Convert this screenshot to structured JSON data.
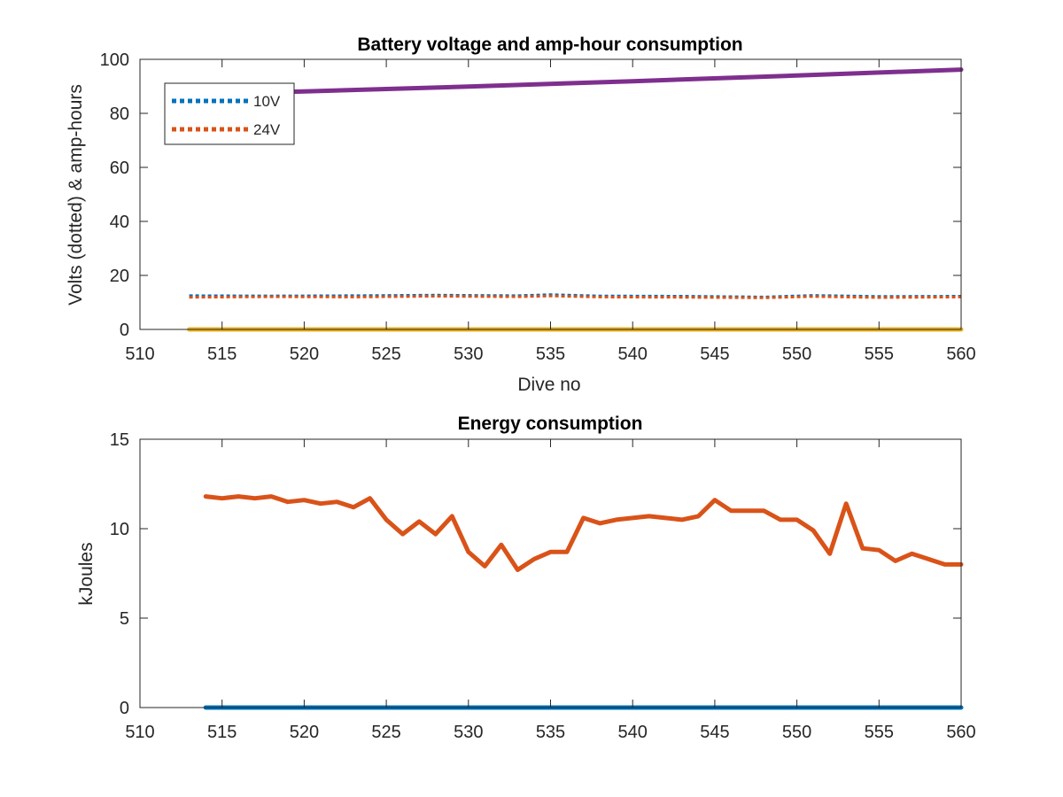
{
  "chart_data": [
    {
      "type": "line",
      "title": "Battery voltage and amp-hour consumption",
      "xlabel": "Dive no",
      "ylabel": "Volts (dotted) & amp-hours",
      "xlim": [
        510,
        560
      ],
      "ylim": [
        0,
        100
      ],
      "xticks": [
        510,
        515,
        520,
        525,
        530,
        535,
        540,
        545,
        550,
        555,
        560
      ],
      "yticks": [
        0,
        20,
        40,
        60,
        80,
        100
      ],
      "grid": false,
      "legend_position": "top-left",
      "series": [
        {
          "name": "10V",
          "style": "dotted",
          "color": "#0072BD",
          "x": [
            513,
            518,
            523,
            528,
            533,
            535,
            538,
            543,
            548,
            551,
            555,
            560
          ],
          "y": [
            12.5,
            12.4,
            12.5,
            12.7,
            12.5,
            12.9,
            12.4,
            12.3,
            12.0,
            12.6,
            12.2,
            12.3
          ]
        },
        {
          "name": "24V",
          "style": "dotted",
          "color": "#D95319",
          "x": [
            513,
            518,
            523,
            528,
            533,
            535,
            538,
            543,
            548,
            551,
            555,
            560
          ],
          "y": [
            11.9,
            12.1,
            12.0,
            12.3,
            12.1,
            12.4,
            12.0,
            11.9,
            11.7,
            12.2,
            11.8,
            12.0
          ]
        },
        {
          "style": "solid",
          "color": "#7E2F8E",
          "x": [
            513,
            520,
            530,
            540,
            550,
            560
          ],
          "y": [
            87.0,
            88.1,
            89.9,
            91.9,
            94.0,
            96.2
          ]
        },
        {
          "style": "solid",
          "color": "#EDB120",
          "x": [
            513,
            560
          ],
          "y": [
            0,
            0
          ]
        }
      ]
    },
    {
      "type": "line",
      "title": "Energy consumption",
      "xlabel": "",
      "ylabel": "kJoules",
      "xlim": [
        510,
        560
      ],
      "ylim": [
        0,
        15
      ],
      "xticks": [
        510,
        515,
        520,
        525,
        530,
        535,
        540,
        545,
        550,
        555,
        560
      ],
      "yticks": [
        0,
        5,
        10,
        15
      ],
      "grid": false,
      "series": [
        {
          "style": "solid",
          "color": "#D95319",
          "x": [
            514,
            515,
            516,
            517,
            518,
            519,
            520,
            521,
            522,
            523,
            524,
            525,
            526,
            527,
            528,
            529,
            530,
            531,
            532,
            533,
            534,
            535,
            536,
            537,
            538,
            539,
            540,
            541,
            542,
            543,
            544,
            545,
            546,
            547,
            548,
            549,
            550,
            551,
            552,
            553,
            554,
            555,
            556,
            557,
            558,
            559,
            560
          ],
          "y": [
            11.8,
            11.7,
            11.8,
            11.7,
            11.8,
            11.5,
            11.6,
            11.4,
            11.5,
            11.2,
            11.7,
            10.5,
            9.7,
            10.4,
            9.7,
            10.7,
            8.7,
            7.9,
            9.1,
            7.7,
            8.3,
            8.7,
            8.7,
            10.6,
            10.3,
            10.5,
            10.6,
            10.7,
            10.6,
            10.5,
            10.7,
            11.6,
            11.0,
            11.0,
            11.0,
            10.5,
            10.5,
            9.9,
            8.6,
            11.4,
            8.9,
            8.8,
            8.2,
            8.6,
            8.3,
            8.0,
            8.0
          ]
        },
        {
          "style": "solid",
          "color": "#0072BD",
          "x": [
            514,
            560
          ],
          "y": [
            0,
            0
          ]
        }
      ]
    }
  ]
}
